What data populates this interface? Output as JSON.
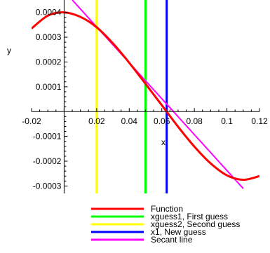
{
  "chart_data": {
    "type": "line",
    "title": "",
    "xlabel": "x",
    "ylabel": "y",
    "xlim": [
      -0.02,
      0.12
    ],
    "ylim": [
      -0.00033,
      0.00045
    ],
    "x_ticks": [
      {
        "value": -0.02,
        "label": "-0.02"
      },
      {
        "value": 0.02,
        "label": "0.02"
      },
      {
        "value": 0.04,
        "label": "0.04"
      },
      {
        "value": 0.06,
        "label": "0.06"
      },
      {
        "value": 0.08,
        "label": "0.08"
      },
      {
        "value": 0.1,
        "label": "0.1"
      },
      {
        "value": 0.12,
        "label": "0.12"
      }
    ],
    "y_ticks": [
      {
        "value": 0.0004,
        "label": "0.0004"
      },
      {
        "value": 0.0003,
        "label": "0.0003"
      },
      {
        "value": 0.0002,
        "label": "0.0002"
      },
      {
        "value": 0.0001,
        "label": "0.0001"
      },
      {
        "value": -0.0001,
        "label": "-0.0001"
      },
      {
        "value": -0.0002,
        "label": "-0.0002"
      },
      {
        "value": -0.0003,
        "label": "-0.0003"
      }
    ],
    "grid": false,
    "legend_position": "bottom",
    "series": [
      {
        "name": "Function",
        "color": "#ff0000",
        "kind": "curve",
        "x": [
          -0.02,
          -0.01,
          0,
          0.01,
          0.02,
          0.03,
          0.04,
          0.05,
          0.06,
          0.07,
          0.08,
          0.09,
          0.1,
          0.11,
          0.12
        ],
        "y": [
          0.000335,
          0.000387,
          0.0004,
          0.000382,
          0.00034,
          0.000275,
          0.000197,
          0.000112,
          2.6e-05,
          -6.1e-05,
          -0.000141,
          -0.000209,
          -0.000257,
          -0.000275,
          -0.00026
        ]
      },
      {
        "name": "xguess1, First guess",
        "color": "#00ff00",
        "kind": "vline",
        "x": 0.05
      },
      {
        "name": "xguess2, Second guess",
        "color": "#ffff00",
        "kind": "vline",
        "x": 0.02
      },
      {
        "name": "x1, New guess",
        "color": "#0000ff",
        "kind": "vline",
        "x": 0.063
      },
      {
        "name": "Secant line",
        "color": "#ff00ff",
        "kind": "line",
        "x": [
          0.005,
          0.11
        ],
        "y": [
          0.00045,
          -0.00031
        ]
      }
    ]
  }
}
